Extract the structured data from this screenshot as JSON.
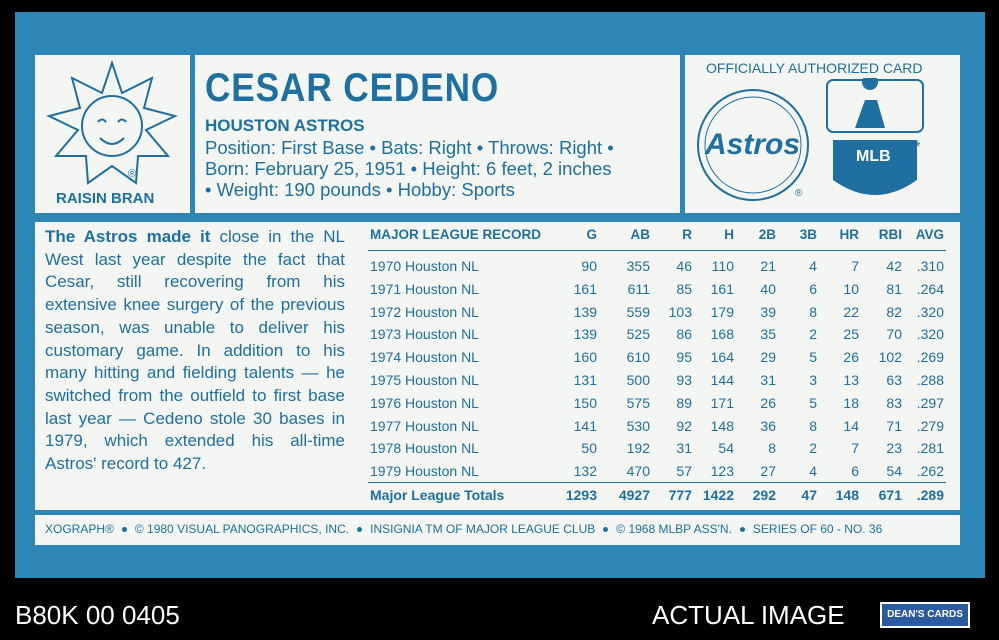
{
  "header": {
    "name": "CESAR CEDENO",
    "team": "HOUSTON ASTROS",
    "bio_lines": [
      "Position: First Base • Bats: Right • Throws: Right •",
      "Born: February 25, 1951 • Height: 6 feet, 2 inches",
      "• Weight: 190 pounds • Hobby: Sports"
    ]
  },
  "sponsor": {
    "brand": "RAISIN BRAN",
    "mark": "®"
  },
  "badges": {
    "title": "OFFICIALLY AUTHORIZED CARD",
    "club": "Astros",
    "league": "MLB",
    "mark": "®",
    "star": "*"
  },
  "story": {
    "lead": "The Astros made it",
    "text": " close in the NL West last year despite the fact that Cesar, still recovering from his extensive knee surgery of the previous season, was unable to deliver his customary game. In addition to his many hitting and fielding talents — he switched from the outfield to first base last year — Cedeno stole 30 bases in 1979, which extended his all-time Astros' record to 427."
  },
  "table": {
    "columns": [
      "MAJOR LEAGUE RECORD",
      "G",
      "AB",
      "R",
      "H",
      "2B",
      "3B",
      "HR",
      "RBI",
      "AVG"
    ],
    "rows": [
      [
        "1970 Houston NL",
        "90",
        "355",
        "46",
        "110",
        "21",
        "4",
        "7",
        "42",
        ".310"
      ],
      [
        "1971 Houston NL",
        "161",
        "611",
        "85",
        "161",
        "40",
        "6",
        "10",
        "81",
        ".264"
      ],
      [
        "1972 Houston NL",
        "139",
        "559",
        "103",
        "179",
        "39",
        "8",
        "22",
        "82",
        ".320"
      ],
      [
        "1973 Houston NL",
        "139",
        "525",
        "86",
        "168",
        "35",
        "2",
        "25",
        "70",
        ".320"
      ],
      [
        "1974 Houston NL",
        "160",
        "610",
        "95",
        "164",
        "29",
        "5",
        "26",
        "102",
        ".269"
      ],
      [
        "1975 Houston NL",
        "131",
        "500",
        "93",
        "144",
        "31",
        "3",
        "13",
        "63",
        ".288"
      ],
      [
        "1976 Houston NL",
        "150",
        "575",
        "89",
        "171",
        "26",
        "5",
        "18",
        "83",
        ".297"
      ],
      [
        "1977 Houston NL",
        "141",
        "530",
        "92",
        "148",
        "36",
        "8",
        "14",
        "71",
        ".279"
      ],
      [
        "1978 Houston NL",
        "50",
        "192",
        "31",
        "54",
        "8",
        "2",
        "7",
        "23",
        ".281"
      ],
      [
        "1979 Houston NL",
        "132",
        "470",
        "57",
        "123",
        "27",
        "4",
        "6",
        "54",
        ".262"
      ]
    ],
    "totals": [
      "Major League Totals",
      "1293",
      "4927",
      "777",
      "1422",
      "292",
      "47",
      "148",
      "671",
      ".289"
    ]
  },
  "footer": [
    "XOGRAPH®",
    "© 1980 VISUAL PANOGRAPHICS, INC.",
    "INSIGNIA TM OF MAJOR LEAGUE CLUB",
    "© 1968 MLBP ASS'N.",
    "SERIES OF 60 - NO. 36"
  ],
  "scan": {
    "id": "B80K 00 0405",
    "label": "ACTUAL IMAGE",
    "logo": "DEAN'S CARDS"
  }
}
